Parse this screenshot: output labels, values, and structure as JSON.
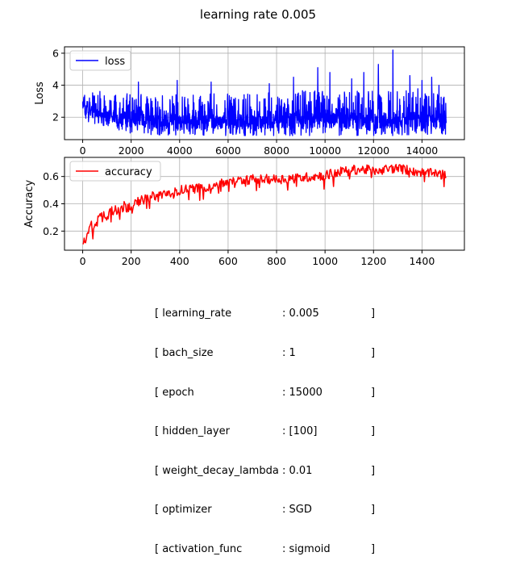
{
  "chart_data": [
    {
      "type": "line",
      "suptitle": "learning rate 0.005",
      "ylabel": "Loss",
      "xlabel": "",
      "xlim": [
        -750,
        15750
      ],
      "ylim": [
        0.6,
        6.4
      ],
      "xticks": [
        0,
        2000,
        4000,
        6000,
        8000,
        10000,
        12000,
        14000
      ],
      "yticks": [
        2,
        4,
        6
      ],
      "grid": true,
      "legend": "top-left",
      "series": [
        {
          "name": "loss",
          "color": "#0000ff",
          "x_range": [
            0,
            15000
          ],
          "envelope_x": [
            0,
            250,
            500,
            1000,
            1500,
            2000,
            3000,
            4000,
            5000,
            6000,
            7000,
            8000,
            9000,
            10000,
            11000,
            12000,
            13000,
            14000,
            15000
          ],
          "envelope_min": [
            1.8,
            1.7,
            1.6,
            1.4,
            1.2,
            1.0,
            0.9,
            0.85,
            0.85,
            0.85,
            0.85,
            0.85,
            0.85,
            0.85,
            0.85,
            0.85,
            0.85,
            0.85,
            0.9
          ],
          "envelope_max": [
            3.8,
            3.7,
            3.7,
            3.6,
            3.6,
            3.6,
            3.5,
            3.5,
            3.5,
            3.5,
            3.6,
            3.6,
            3.7,
            3.7,
            3.7,
            3.7,
            3.8,
            3.8,
            3.3
          ],
          "spikes": [
            [
              2300,
              4.2
            ],
            [
              3900,
              4.3
            ],
            [
              5300,
              4.2
            ],
            [
              7700,
              4.1
            ],
            [
              8700,
              4.5
            ],
            [
              9700,
              5.1
            ],
            [
              10200,
              4.8
            ],
            [
              11100,
              4.4
            ],
            [
              11600,
              4.8
            ],
            [
              12200,
              5.3
            ],
            [
              12800,
              6.2
            ],
            [
              13500,
              4.6
            ],
            [
              14000,
              4.3
            ],
            [
              14400,
              4.5
            ],
            [
              14700,
              4.0
            ]
          ]
        }
      ]
    },
    {
      "type": "line",
      "ylabel": "Accuracy",
      "xlabel": "",
      "xlim": [
        -75,
        1575
      ],
      "ylim": [
        0.06,
        0.74
      ],
      "xticks": [
        0,
        200,
        400,
        600,
        800,
        1000,
        1200,
        1400
      ],
      "yticks": [
        0.2,
        0.4,
        0.6
      ],
      "grid": true,
      "legend": "top-left",
      "series": [
        {
          "name": "accuracy",
          "color": "#ff0000",
          "x_range": [
            0,
            1500
          ],
          "trend_x": [
            0,
            20,
            50,
            100,
            150,
            200,
            250,
            300,
            400,
            500,
            600,
            700,
            800,
            900,
            1000,
            1100,
            1200,
            1300,
            1400,
            1500
          ],
          "trend_y": [
            0.1,
            0.2,
            0.27,
            0.33,
            0.37,
            0.39,
            0.43,
            0.46,
            0.5,
            0.52,
            0.56,
            0.58,
            0.58,
            0.59,
            0.61,
            0.65,
            0.65,
            0.66,
            0.63,
            0.61
          ]
        }
      ]
    }
  ],
  "params": [
    {
      "key": "[ learning_rate",
      "val": ": 0.005",
      "end": "]"
    },
    {
      "key": "[ bach_size",
      "val": ": 1",
      "end": "]"
    },
    {
      "key": "[ epoch",
      "val": ": 15000",
      "end": "]"
    },
    {
      "key": "[ hidden_layer",
      "val": ": [100]",
      "end": "]"
    },
    {
      "key": "[ weight_decay_lambda",
      "val": ": 0.01",
      "end": "]"
    },
    {
      "key": "[ optimizer",
      "val": ": SGD",
      "end": "]"
    },
    {
      "key": "[ activation_func",
      "val": ": sigmoid",
      "end": "]"
    }
  ]
}
